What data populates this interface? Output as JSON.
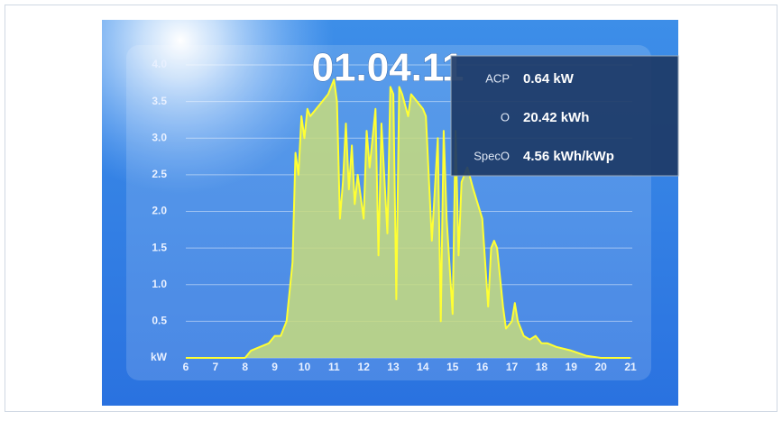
{
  "chart_data": {
    "type": "area",
    "title": "01.04.11",
    "x": [
      6,
      8,
      8.2,
      8.5,
      8.8,
      9,
      9.2,
      9.4,
      9.6,
      9.7,
      9.8,
      9.9,
      10,
      10.1,
      10.2,
      10.4,
      10.6,
      10.8,
      11,
      11.1,
      11.2,
      11.3,
      11.4,
      11.5,
      11.6,
      11.7,
      11.8,
      12,
      12.1,
      12.2,
      12.4,
      12.5,
      12.6,
      12.8,
      12.9,
      13,
      13.1,
      13.2,
      13.3,
      13.5,
      13.6,
      13.8,
      14,
      14.1,
      14.3,
      14.5,
      14.6,
      14.7,
      14.8,
      15,
      15.1,
      15.2,
      15.3,
      15.5,
      15.7,
      16,
      16.2,
      16.3,
      16.4,
      16.5,
      16.7,
      16.8,
      17,
      17.1,
      17.2,
      17.4,
      17.6,
      17.8,
      18,
      18.2,
      18.5,
      19,
      19.5,
      20,
      21
    ],
    "series": [
      {
        "color": "#ffff33",
        "area_color": "#c8dc7c",
        "values": [
          0,
          0,
          0.1,
          0.15,
          0.2,
          0.3,
          0.3,
          0.5,
          1.3,
          2.8,
          2.5,
          3.3,
          3.0,
          3.4,
          3.3,
          3.4,
          3.5,
          3.6,
          3.8,
          3.5,
          1.9,
          2.4,
          3.2,
          2.3,
          2.9,
          2.1,
          2.5,
          1.9,
          3.1,
          2.6,
          3.4,
          1.4,
          3.2,
          1.7,
          3.7,
          3.6,
          0.8,
          3.7,
          3.6,
          3.3,
          3.6,
          3.5,
          3.4,
          3.3,
          1.6,
          3.0,
          0.5,
          3.1,
          1.9,
          0.6,
          3.1,
          1.4,
          2.4,
          2.6,
          2.3,
          1.9,
          0.7,
          1.5,
          1.6,
          1.5,
          0.7,
          0.4,
          0.5,
          0.75,
          0.5,
          0.3,
          0.25,
          0.3,
          0.2,
          0.2,
          0.15,
          0.1,
          0.03,
          0,
          0
        ]
      }
    ],
    "xlim": [
      6,
      21
    ],
    "xticks": [
      6,
      7,
      8,
      9,
      10,
      11,
      12,
      13,
      14,
      15,
      16,
      17,
      18,
      19,
      20,
      21
    ],
    "ylim": [
      0,
      4
    ],
    "yticks": [
      {
        "value": 0,
        "label": "kW"
      },
      {
        "value": 0.5,
        "label": "0.5"
      },
      {
        "value": 1,
        "label": "1.0"
      },
      {
        "value": 1.5,
        "label": "1.5"
      },
      {
        "value": 2,
        "label": "2.0"
      },
      {
        "value": 2.5,
        "label": "2.5"
      },
      {
        "value": 3,
        "label": "3.0"
      },
      {
        "value": 3.5,
        "label": "3.5"
      },
      {
        "value": 4,
        "label": "4.0"
      }
    ],
    "grid": true
  },
  "info": {
    "rows": [
      {
        "label": "ACP",
        "value": "0.64 kW"
      },
      {
        "label": "O",
        "value": "20.42 kWh"
      },
      {
        "label": "SpecO",
        "value": "4.56 kWh/kWp"
      }
    ]
  }
}
